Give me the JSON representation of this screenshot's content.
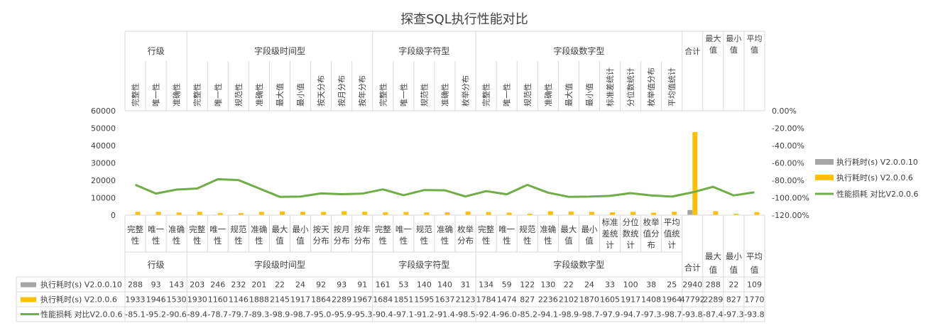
{
  "chart_data": {
    "type": "bar",
    "title": "探查SQL执行性能对比",
    "top_header": {
      "groups": [
        {
          "label": "行级",
          "span": 3
        },
        {
          "label": "字段级时间型",
          "span": 9
        },
        {
          "label": "字段级字符型",
          "span": 5
        },
        {
          "label": "字段级数字型",
          "span": 10
        }
      ],
      "categories": [
        "完整性",
        "唯一性",
        "准确性",
        "完整性",
        "唯一性",
        "规范性",
        "准确性",
        "最大值",
        "最小值",
        "按天分布",
        "按月分布",
        "按年分布",
        "完整性",
        "唯一性",
        "规范性",
        "准确性",
        "枚举分布",
        "完整性",
        "唯一性",
        "规范性",
        "准确性",
        "最大值",
        "最小值",
        "标准差统计",
        "分位数统计",
        "枚举值分布",
        "平均值统计"
      ],
      "summary": [
        "合计",
        "最大值",
        "最小值",
        "平均值"
      ]
    },
    "bottom_header": {
      "categories": [
        "完整性",
        "唯一性",
        "准确性",
        "完整性",
        "唯一性",
        "规范性",
        "准确性",
        "最大值",
        "最小值",
        "按天分布",
        "按月分布",
        "按年分布",
        "完整性",
        "唯一性",
        "规范性",
        "准确性",
        "枚举分布",
        "完整性",
        "唯一性",
        "规范性",
        "准确性",
        "最大值",
        "最小值",
        "标准差统计",
        "分位数统计",
        "枚举值分布",
        "平均值统计"
      ],
      "groups": [
        "行级",
        "字段级时间型",
        "字段级字符型",
        "字段级数字型"
      ],
      "summary": [
        "合计",
        "最大值",
        "最小值",
        "平均值"
      ]
    },
    "y_left": {
      "min": 0,
      "max": 60000,
      "ticks": [
        "0",
        "10000",
        "20000",
        "30000",
        "40000",
        "50000",
        "60000"
      ]
    },
    "y_right": {
      "min": -120,
      "max": 0,
      "ticks": [
        "-120.00%",
        "-100.00%",
        "-80.00%",
        "-60.00%",
        "-40.00%",
        "-20.00%",
        "0.00%"
      ]
    },
    "series": [
      {
        "name": "执行耗时(s) V2.0.0.10",
        "kind": "bar",
        "axis": "left",
        "color": "#a5a5a5",
        "values": [
          288,
          93,
          143,
          203,
          246,
          232,
          201,
          22,
          24,
          92,
          93,
          91,
          161,
          53,
          140,
          140,
          31,
          134,
          59,
          122,
          130,
          22,
          24,
          33,
          100,
          38,
          25,
          2940,
          288,
          22,
          109
        ],
        "labels": [
          "288",
          "93",
          "143",
          "203",
          "246",
          "232",
          "201",
          "22",
          "24",
          "92",
          "93",
          "91",
          "161",
          "53",
          "140",
          "140",
          "31",
          "134",
          "59",
          "122",
          "130",
          "22",
          "24",
          "33",
          "100",
          "38",
          "25",
          "2940",
          "288",
          "22",
          "109"
        ]
      },
      {
        "name": "执行耗时(s) V2.0.0.6",
        "kind": "bar",
        "axis": "left",
        "color": "#ffc000",
        "values": [
          1933,
          1946,
          1530,
          1930,
          1160,
          1146,
          1888,
          2145,
          1917,
          1864,
          2289,
          1967,
          1684,
          1851,
          1595,
          1637,
          2123,
          1784,
          1474,
          827,
          2236,
          2102,
          1870,
          1605,
          1917,
          1408,
          1964,
          47792,
          2289,
          827,
          1770
        ],
        "labels": [
          "1933",
          "1946",
          "1530",
          "1930",
          "1160",
          "1146",
          "1888",
          "2145",
          "1917",
          "1864",
          "2289",
          "1967",
          "1684",
          "1851",
          "1595",
          "1637",
          "2123",
          "1784",
          "1474",
          "827",
          "2236",
          "2102",
          "1870",
          "1605",
          "1917",
          "1408",
          "1964",
          "47792",
          "2289",
          "827",
          "1770"
        ]
      },
      {
        "name": "性能损耗 对比V2.0.0.6",
        "kind": "line",
        "axis": "right",
        "color": "#70ad47",
        "values": [
          -85.1,
          -95.2,
          -90.6,
          -89.4,
          -78.7,
          -79.7,
          -89.3,
          -98.9,
          -98.7,
          -95.0,
          -95.9,
          -95.3,
          -90.4,
          -97.1,
          -91.2,
          -91.4,
          -98.5,
          -92.4,
          -96.0,
          -85.2,
          -94.1,
          -98.9,
          -98.7,
          -97.9,
          -94.7,
          -97.3,
          -98.7,
          -93.8,
          -87.4,
          -97.3,
          -93.8
        ],
        "labels": [
          "-85.1",
          "-95.2",
          "-90.6",
          "-89.4",
          "-78.7",
          "-79.7",
          "-89.3",
          "-98.9",
          "-98.7",
          "-95.0",
          "-95.9",
          "-95.3",
          "-90.4",
          "-97.1",
          "-91.2",
          "-91.4",
          "-98.5",
          "-92.4",
          "-96.0",
          "-85.2",
          "-94.1",
          "-98.9",
          "-98.7",
          "-97.9",
          "-94.7",
          "-97.3",
          "-98.7",
          "-93.8",
          "-87.4",
          "-97.3",
          "-93.8"
        ]
      }
    ],
    "legend_position": "right",
    "grid": false
  }
}
